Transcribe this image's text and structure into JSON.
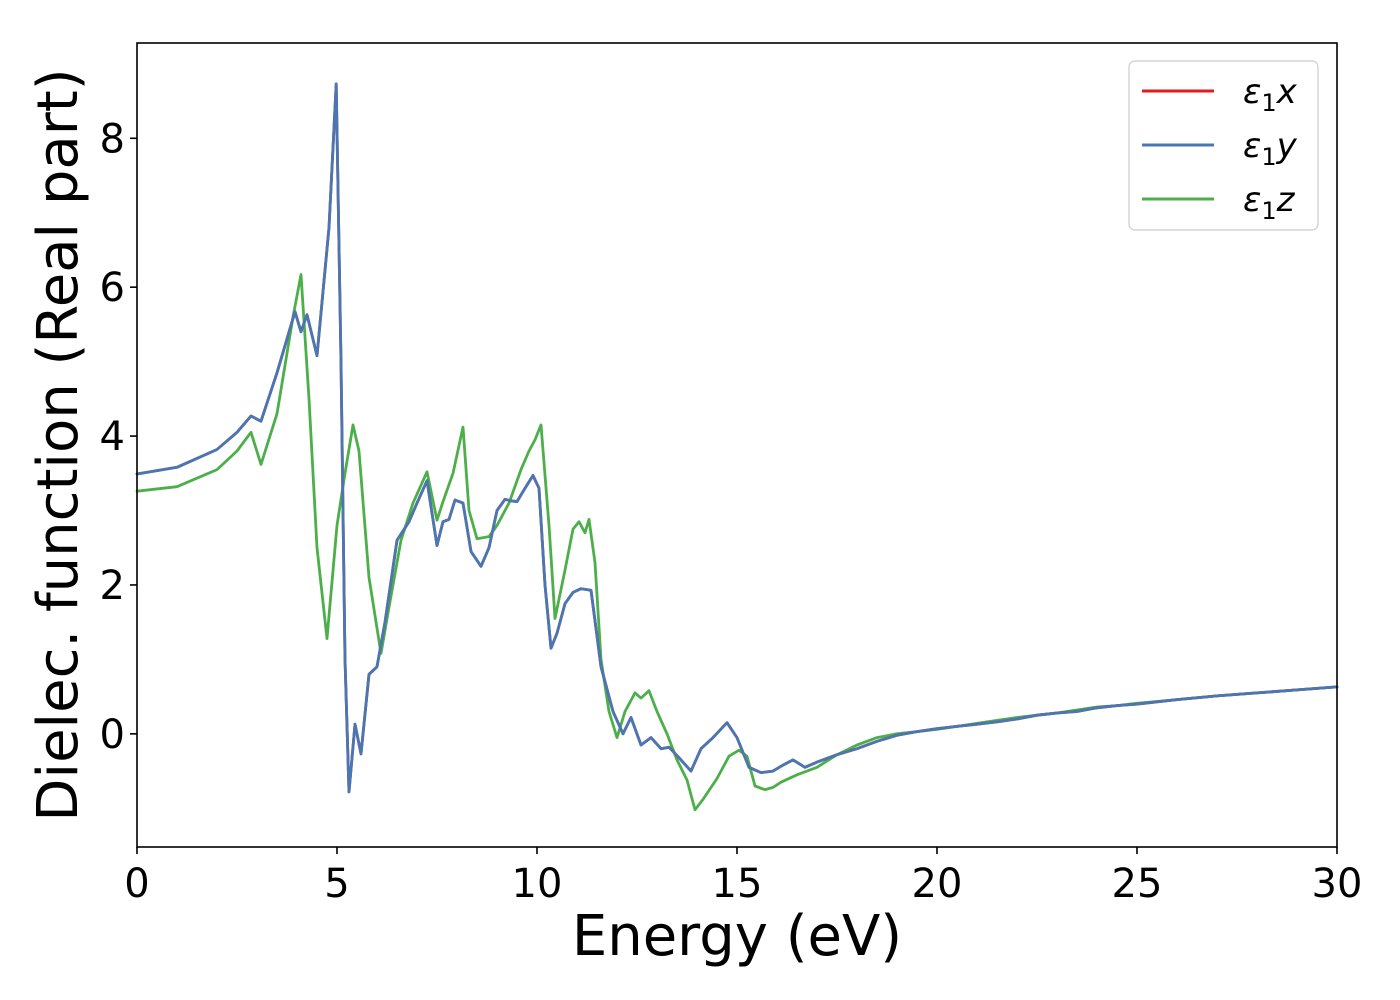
{
  "chart_data": {
    "type": "line",
    "title": "",
    "xlabel": "Energy (eV)",
    "ylabel": "Dielec. function (Real part)",
    "xlim": [
      0,
      30
    ],
    "ylim": [
      -1.52,
      9.28
    ],
    "xticks": [
      0,
      5,
      10,
      15,
      20,
      25,
      30
    ],
    "yticks": [
      0,
      2,
      4,
      6,
      8
    ],
    "grid": false,
    "legend_position": "top-right",
    "series": [
      {
        "name": "ε₁x",
        "sym": "ε",
        "sub": "1",
        "axis": "x",
        "color": "#e41a1c",
        "x": [
          0,
          1,
          2,
          2.5,
          2.85,
          3.1,
          3.5,
          3.95,
          4.1,
          4.25,
          4.5,
          4.8,
          4.98,
          5.1,
          5.2,
          5.3,
          5.45,
          5.6,
          5.8,
          6.0,
          6.2,
          6.5,
          6.8,
          7.0,
          7.25,
          7.5,
          7.65,
          7.8,
          7.95,
          8.15,
          8.35,
          8.6,
          8.8,
          9.0,
          9.2,
          9.35,
          9.5,
          9.7,
          9.9,
          10.05,
          10.2,
          10.35,
          10.5,
          10.7,
          10.9,
          11.1,
          11.35,
          11.6,
          11.9,
          12.15,
          12.35,
          12.6,
          12.85,
          13.1,
          13.3,
          13.55,
          13.85,
          14.1,
          14.4,
          14.75,
          15.0,
          15.3,
          15.6,
          15.9,
          16.15,
          16.4,
          16.7,
          17.0,
          17.5,
          18.0,
          18.5,
          19.0,
          19.5,
          20.0,
          20.5,
          21.0,
          21.5,
          22.0,
          22.5,
          23.0,
          23.5,
          24.0,
          24.5,
          25.0,
          26.0,
          27.0,
          28.0,
          29.0,
          30.0
        ],
        "y": [
          3.49,
          3.58,
          3.82,
          4.05,
          4.27,
          4.2,
          4.85,
          5.67,
          5.4,
          5.63,
          5.08,
          6.8,
          8.73,
          5.0,
          1.0,
          -0.78,
          0.13,
          -0.27,
          0.8,
          0.9,
          1.5,
          2.6,
          2.85,
          3.1,
          3.4,
          2.53,
          2.85,
          2.88,
          3.14,
          3.1,
          2.45,
          2.25,
          2.5,
          3.0,
          3.15,
          3.13,
          3.12,
          3.3,
          3.47,
          3.3,
          2.0,
          1.15,
          1.35,
          1.75,
          1.9,
          1.95,
          1.93,
          0.9,
          0.3,
          0.0,
          0.22,
          -0.15,
          -0.05,
          -0.2,
          -0.18,
          -0.32,
          -0.5,
          -0.2,
          -0.05,
          0.15,
          -0.05,
          -0.45,
          -0.52,
          -0.5,
          -0.42,
          -0.35,
          -0.45,
          -0.38,
          -0.28,
          -0.2,
          -0.1,
          -0.02,
          0.03,
          0.07,
          0.1,
          0.13,
          0.16,
          0.2,
          0.25,
          0.28,
          0.3,
          0.35,
          0.38,
          0.4,
          0.46,
          0.51,
          0.55,
          0.59,
          0.63
        ]
      },
      {
        "name": "ε₁y",
        "sym": "ε",
        "sub": "1",
        "axis": "y",
        "color": "#4878b4",
        "x": [
          0,
          1,
          2,
          2.5,
          2.85,
          3.1,
          3.5,
          3.95,
          4.1,
          4.25,
          4.5,
          4.8,
          4.98,
          5.1,
          5.2,
          5.3,
          5.45,
          5.6,
          5.8,
          6.0,
          6.2,
          6.5,
          6.8,
          7.0,
          7.25,
          7.5,
          7.65,
          7.8,
          7.95,
          8.15,
          8.35,
          8.6,
          8.8,
          9.0,
          9.2,
          9.35,
          9.5,
          9.7,
          9.9,
          10.05,
          10.2,
          10.35,
          10.5,
          10.7,
          10.9,
          11.1,
          11.35,
          11.6,
          11.9,
          12.15,
          12.35,
          12.6,
          12.85,
          13.1,
          13.3,
          13.55,
          13.85,
          14.1,
          14.4,
          14.75,
          15.0,
          15.3,
          15.6,
          15.9,
          16.15,
          16.4,
          16.7,
          17.0,
          17.5,
          18.0,
          18.5,
          19.0,
          19.5,
          20.0,
          20.5,
          21.0,
          21.5,
          22.0,
          22.5,
          23.0,
          23.5,
          24.0,
          24.5,
          25.0,
          26.0,
          27.0,
          28.0,
          29.0,
          30.0
        ],
        "y": [
          3.49,
          3.58,
          3.82,
          4.05,
          4.27,
          4.2,
          4.85,
          5.67,
          5.4,
          5.63,
          5.08,
          6.8,
          8.73,
          5.0,
          1.0,
          -0.78,
          0.13,
          -0.27,
          0.8,
          0.9,
          1.5,
          2.6,
          2.85,
          3.1,
          3.4,
          2.53,
          2.85,
          2.88,
          3.14,
          3.1,
          2.45,
          2.25,
          2.5,
          3.0,
          3.15,
          3.13,
          3.12,
          3.3,
          3.47,
          3.3,
          2.0,
          1.15,
          1.35,
          1.75,
          1.9,
          1.95,
          1.93,
          0.9,
          0.3,
          0.0,
          0.22,
          -0.15,
          -0.05,
          -0.2,
          -0.18,
          -0.32,
          -0.5,
          -0.2,
          -0.05,
          0.15,
          -0.05,
          -0.45,
          -0.52,
          -0.5,
          -0.42,
          -0.35,
          -0.45,
          -0.38,
          -0.28,
          -0.2,
          -0.1,
          -0.02,
          0.03,
          0.07,
          0.1,
          0.13,
          0.16,
          0.2,
          0.25,
          0.28,
          0.3,
          0.35,
          0.38,
          0.4,
          0.46,
          0.51,
          0.55,
          0.59,
          0.63
        ]
      },
      {
        "name": "ε₁z",
        "sym": "ε",
        "sub": "1",
        "axis": "z",
        "color": "#4daf4a",
        "x": [
          0,
          1,
          2,
          2.5,
          2.85,
          3.1,
          3.5,
          3.9,
          4.1,
          4.3,
          4.5,
          4.75,
          5.0,
          5.2,
          5.4,
          5.55,
          5.8,
          6.1,
          6.3,
          6.6,
          6.9,
          7.25,
          7.5,
          7.65,
          7.9,
          8.15,
          8.3,
          8.5,
          8.8,
          9.0,
          9.3,
          9.6,
          9.8,
          9.95,
          10.1,
          10.3,
          10.45,
          10.7,
          10.9,
          11.05,
          11.2,
          11.3,
          11.45,
          11.6,
          11.8,
          12.0,
          12.2,
          12.45,
          12.6,
          12.8,
          13.0,
          13.25,
          13.5,
          13.75,
          13.95,
          14.15,
          14.5,
          14.8,
          15.05,
          15.25,
          15.45,
          15.7,
          15.9,
          16.1,
          16.5,
          17.0,
          17.5,
          18.0,
          18.5,
          19.0,
          19.5,
          20.0,
          20.5,
          21.0,
          21.5,
          22.0,
          22.5,
          23.0,
          23.5,
          24.0,
          24.5,
          25.0,
          26.0,
          27.0,
          28.0,
          29.0,
          30.0
        ],
        "y": [
          3.26,
          3.32,
          3.55,
          3.8,
          4.05,
          3.62,
          4.3,
          5.6,
          6.17,
          4.5,
          2.5,
          1.28,
          2.8,
          3.5,
          4.15,
          3.8,
          2.1,
          1.08,
          1.7,
          2.6,
          3.1,
          3.52,
          2.87,
          3.12,
          3.5,
          4.12,
          3.0,
          2.62,
          2.65,
          2.8,
          3.1,
          3.55,
          3.8,
          3.95,
          4.15,
          2.8,
          1.55,
          2.2,
          2.75,
          2.85,
          2.7,
          2.88,
          2.3,
          1.0,
          0.3,
          -0.05,
          0.3,
          0.55,
          0.48,
          0.58,
          0.3,
          0.0,
          -0.35,
          -0.62,
          -1.02,
          -0.88,
          -0.6,
          -0.3,
          -0.22,
          -0.3,
          -0.7,
          -0.75,
          -0.72,
          -0.65,
          -0.55,
          -0.45,
          -0.28,
          -0.15,
          -0.05,
          0.0,
          0.03,
          0.06,
          0.1,
          0.14,
          0.18,
          0.22,
          0.25,
          0.28,
          0.32,
          0.36,
          0.38,
          0.41,
          0.46,
          0.51,
          0.55,
          0.59,
          0.63
        ]
      }
    ]
  }
}
